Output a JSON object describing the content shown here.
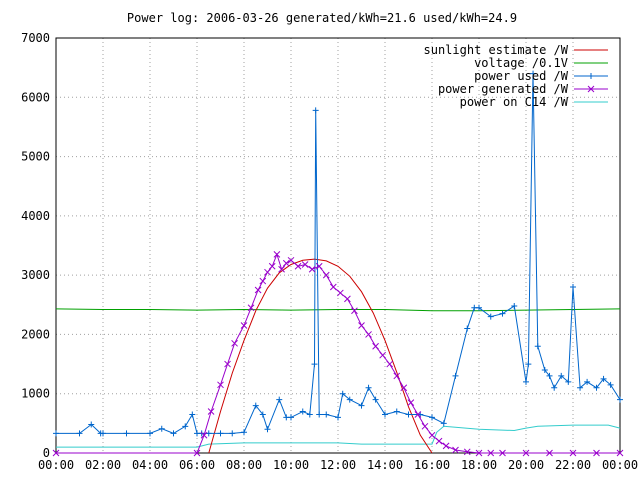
{
  "chart_data": {
    "type": "line",
    "title": "Power log: 2006-03-26 generated/kWh=21.6 used/kWh=24.9",
    "xlabel": "",
    "ylabel": "",
    "xlim": [
      0,
      24
    ],
    "ylim": [
      0,
      7000
    ],
    "grid": true,
    "legend_position": "top-right",
    "x_tick_labels": [
      "00:00",
      "02:00",
      "04:00",
      "06:00",
      "08:00",
      "10:00",
      "12:00",
      "14:00",
      "16:00",
      "18:00",
      "20:00",
      "22:00",
      "00:00"
    ],
    "y_tick_labels": [
      "0",
      "1000",
      "2000",
      "3000",
      "4000",
      "5000",
      "6000",
      "7000"
    ],
    "y_ticks": [
      0,
      1000,
      2000,
      3000,
      4000,
      5000,
      6000,
      7000
    ],
    "series": [
      {
        "name": "sunlight estimate /W",
        "color": "#cc0000",
        "style": "line",
        "x": [
          6.5,
          7.0,
          7.5,
          8.0,
          8.5,
          9.0,
          9.5,
          10.0,
          10.5,
          11.0,
          11.5,
          12.0,
          12.5,
          13.0,
          13.5,
          14.0,
          14.5,
          15.0,
          15.5,
          16.0
        ],
        "y": [
          0,
          700,
          1350,
          1900,
          2400,
          2780,
          3040,
          3180,
          3250,
          3270,
          3240,
          3150,
          2980,
          2720,
          2360,
          1900,
          1360,
          780,
          300,
          0
        ]
      },
      {
        "name": "voltage /0.1V",
        "color": "#00a000",
        "style": "line",
        "x": [
          0,
          2,
          4,
          6,
          8,
          10,
          12,
          14,
          16,
          18,
          20,
          22,
          24
        ],
        "y": [
          2430,
          2420,
          2420,
          2410,
          2420,
          2410,
          2420,
          2420,
          2400,
          2400,
          2410,
          2420,
          2430
        ]
      },
      {
        "name": "power used /W",
        "color": "#0066cc",
        "style": "linepoints",
        "x": [
          0,
          1.0,
          1.5,
          1.9,
          2.0,
          3.0,
          4.0,
          4.5,
          5.0,
          5.5,
          5.8,
          6.0,
          6.2,
          6.5,
          7.0,
          7.5,
          8.0,
          8.5,
          8.8,
          9.0,
          9.5,
          9.8,
          10.0,
          10.5,
          10.8,
          11.0,
          11.05,
          11.2,
          11.5,
          12.0,
          12.2,
          12.5,
          13.0,
          13.3,
          13.6,
          14.0,
          14.5,
          15.0,
          15.5,
          16.0,
          16.5,
          17.0,
          17.5,
          17.8,
          18.0,
          18.5,
          19.0,
          19.5,
          20.0,
          20.1,
          20.3,
          20.5,
          20.8,
          21.0,
          21.2,
          21.5,
          21.8,
          22.0,
          22.3,
          22.6,
          23.0,
          23.3,
          23.6,
          24.0
        ],
        "y": [
          330,
          330,
          480,
          330,
          330,
          330,
          330,
          410,
          330,
          450,
          650,
          330,
          330,
          330,
          330,
          330,
          350,
          800,
          650,
          400,
          900,
          600,
          600,
          700,
          650,
          1500,
          5780,
          650,
          650,
          600,
          1000,
          900,
          800,
          1100,
          900,
          650,
          700,
          650,
          650,
          600,
          500,
          1300,
          2100,
          2450,
          2450,
          2300,
          2350,
          2480,
          1200,
          1500,
          6400,
          1800,
          1400,
          1300,
          1100,
          1300,
          1200,
          2800,
          1100,
          1200,
          1100,
          1250,
          1150,
          900
        ]
      },
      {
        "name": "power generated /W",
        "color": "#9900cc",
        "style": "linepoints",
        "x": [
          0,
          6.0,
          6.3,
          6.6,
          7.0,
          7.3,
          7.6,
          8.0,
          8.3,
          8.6,
          8.8,
          9.0,
          9.2,
          9.4,
          9.6,
          9.8,
          10.0,
          10.3,
          10.6,
          10.9,
          11.2,
          11.5,
          11.8,
          12.1,
          12.4,
          12.7,
          13.0,
          13.3,
          13.6,
          13.9,
          14.2,
          14.5,
          14.8,
          15.1,
          15.4,
          15.7,
          16.0,
          16.3,
          16.6,
          17.0,
          17.5,
          18.0,
          18.5,
          19.0,
          20.0,
          21.0,
          22.0,
          23.0,
          24.0
        ],
        "y": [
          0,
          0,
          300,
          700,
          1150,
          1500,
          1850,
          2150,
          2450,
          2750,
          2900,
          3050,
          3150,
          3350,
          3100,
          3200,
          3250,
          3150,
          3180,
          3100,
          3150,
          3000,
          2800,
          2700,
          2600,
          2400,
          2150,
          2000,
          1800,
          1650,
          1500,
          1300,
          1100,
          850,
          650,
          450,
          300,
          200,
          120,
          50,
          20,
          0,
          0,
          0,
          0,
          0,
          0,
          0,
          0
        ]
      },
      {
        "name": "power on C14 /W",
        "color": "#33cccc",
        "style": "line",
        "x": [
          0,
          2,
          4,
          6,
          6.5,
          8,
          10,
          11,
          12,
          13,
          14,
          15,
          16,
          16.2,
          16.5,
          18,
          19.5,
          20,
          20.5,
          22,
          23.5,
          24
        ],
        "y": [
          100,
          100,
          100,
          100,
          150,
          170,
          170,
          170,
          170,
          150,
          150,
          150,
          150,
          350,
          450,
          400,
          380,
          420,
          450,
          470,
          470,
          420
        ]
      }
    ]
  }
}
